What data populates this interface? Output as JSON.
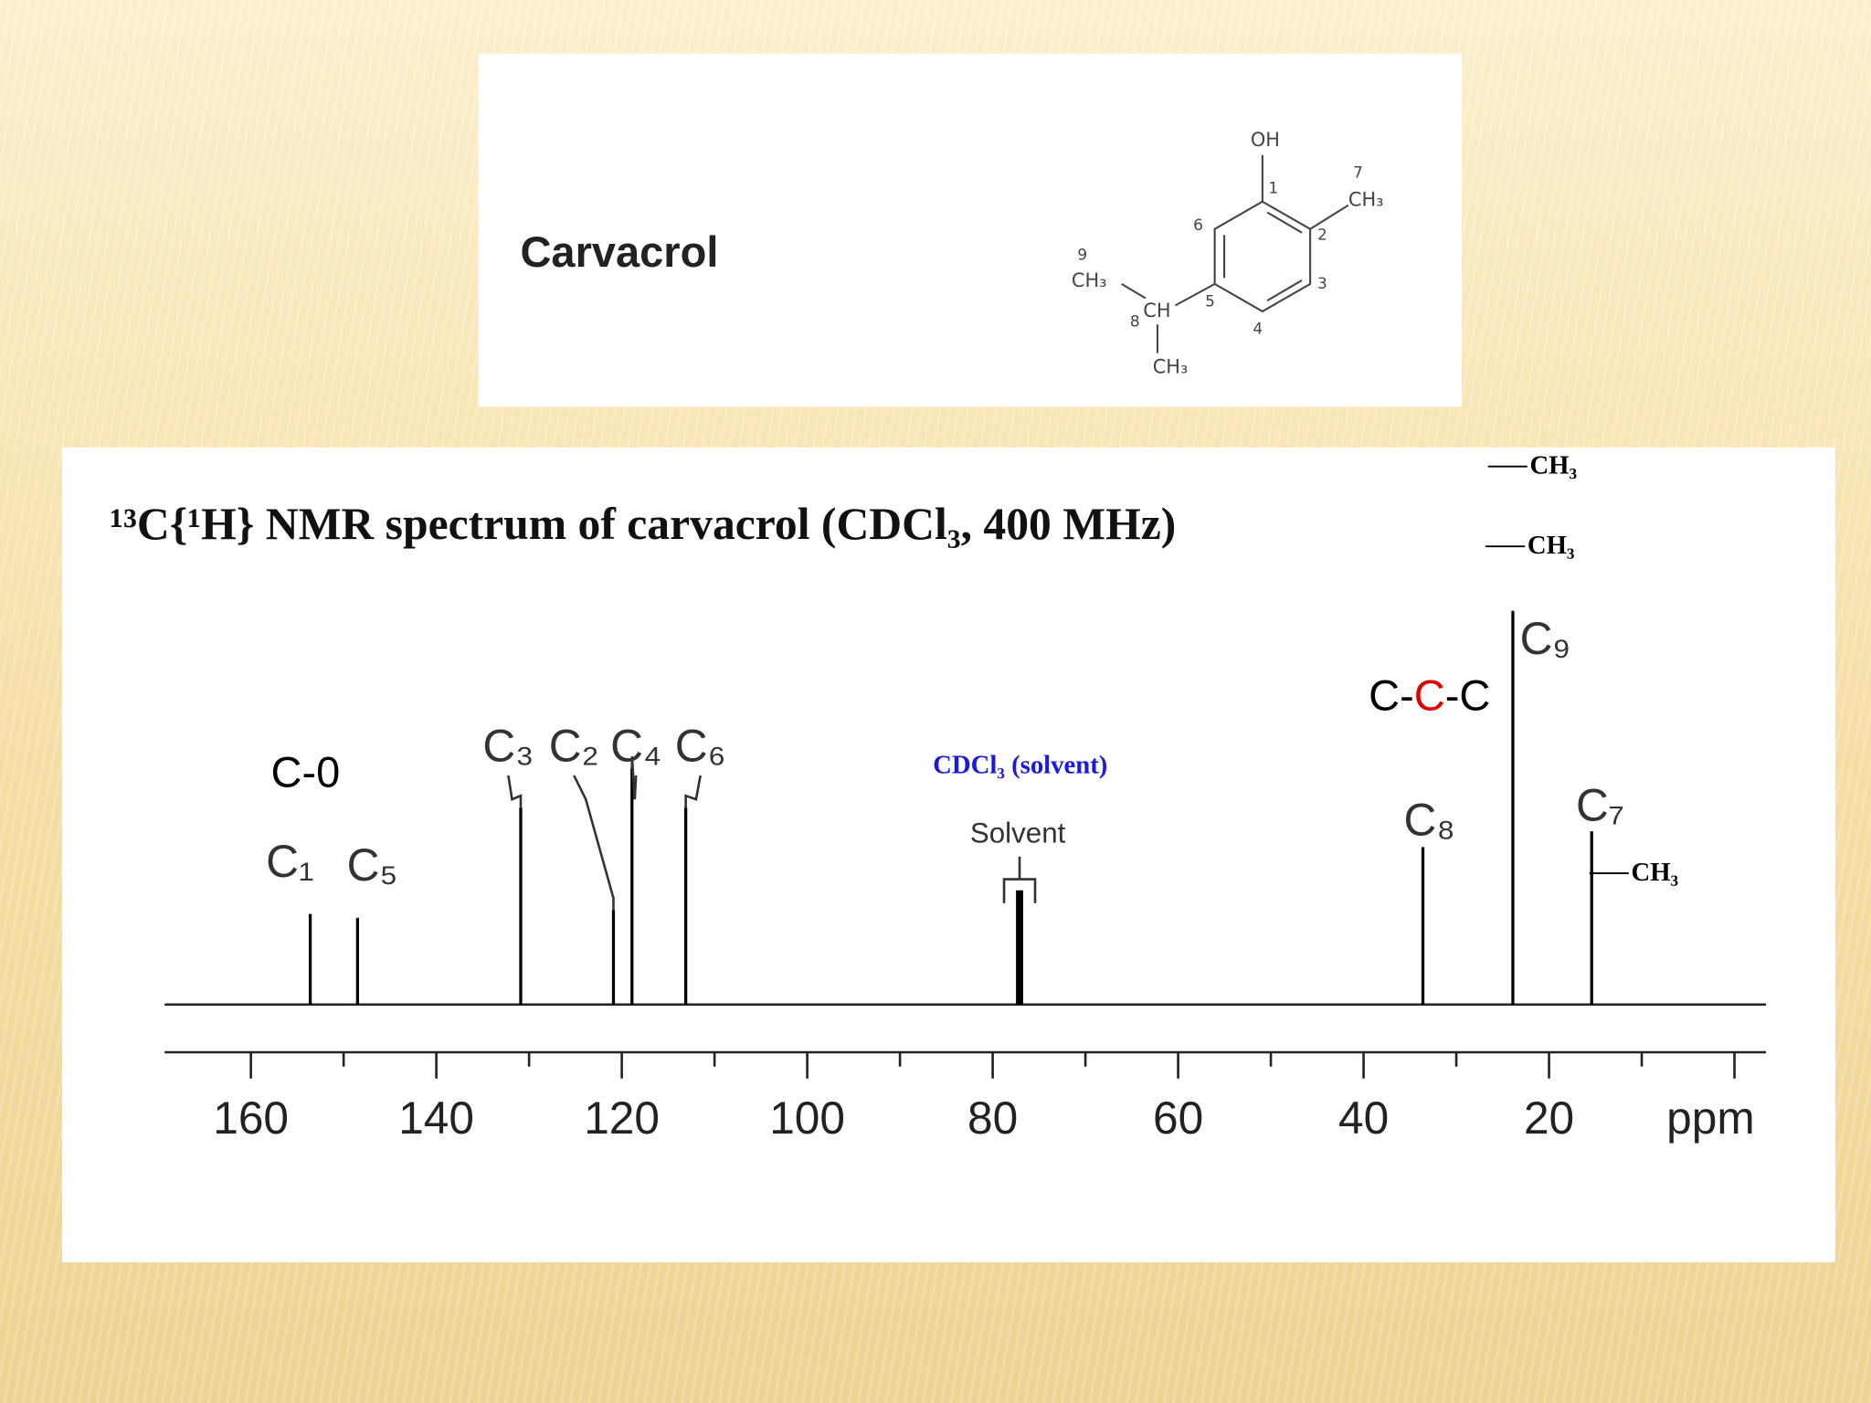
{
  "molecule": {
    "name": "Carvacrol",
    "labels": {
      "oh": "OH",
      "n7": "7",
      "ch3_7": "CH₃",
      "n1": "1",
      "n2": "2",
      "n3": "3",
      "n4": "4",
      "n5": "5",
      "n6": "6",
      "n9": "9",
      "ch3_9": "CH₃",
      "n8": "8",
      "ch": "CH",
      "ch3_low": "CH₃"
    }
  },
  "chart_data": {
    "type": "spectrum",
    "title": "¹³C{¹H} NMR spectrum of carvacrol (CDCl₃, 400 MHz)",
    "x": [
      153.6,
      148.5,
      130.9,
      120.9,
      118.9,
      113.1,
      77.1,
      33.6,
      23.9,
      15.4
    ],
    "values": [
      23,
      22,
      50,
      24,
      60,
      50,
      29,
      40,
      100,
      44
    ],
    "peak_labels": [
      "C₁",
      "C₅",
      "C₃",
      "C₂",
      "C₄",
      "C₆",
      "Solvent",
      "C₈",
      "C₉",
      "C₇"
    ],
    "color": "#000000",
    "xlim": [
      169.3,
      -3.4
    ],
    "ylim": [
      0,
      100
    ],
    "xticks": [
      160,
      140,
      120,
      100,
      80,
      60,
      40,
      20,
      {
        "value": 0,
        "label": "ppm"
      }
    ],
    "xminorticks": [
      150,
      130,
      110,
      90,
      70,
      50,
      30,
      10
    ],
    "annotations": {
      "c_o": "C-0",
      "c_c_c": [
        {
          "text": "C-",
          "color": "#000000"
        },
        {
          "text": "C",
          "color": "#e00000"
        },
        {
          "text": "-C",
          "color": "#000000"
        }
      ],
      "solvent_note": "CDCl₃ (solvent)",
      "ch3_a": "CH₃",
      "ch3_b": "CH₃",
      "ch3_c": "CH₃"
    }
  }
}
